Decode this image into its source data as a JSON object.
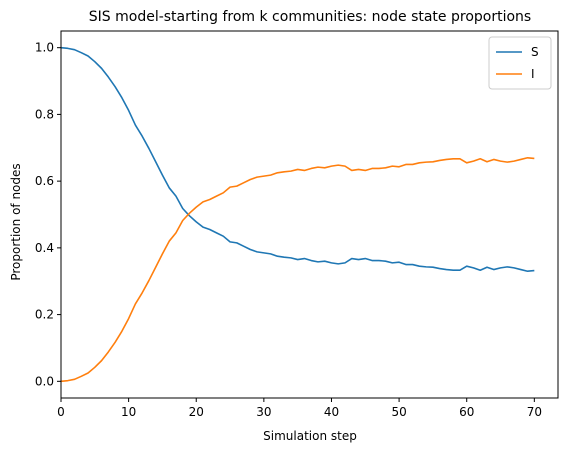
{
  "chart_data": {
    "type": "line",
    "title": "SIS model-starting from k communities: node state proportions",
    "xlabel": "Simulation step",
    "ylabel": "Proportion of nodes",
    "xlim": [
      0,
      73.5
    ],
    "ylim": [
      -0.05,
      1.05
    ],
    "xticks": [
      0,
      10,
      20,
      30,
      40,
      50,
      60,
      70
    ],
    "xtick_labels": [
      "0",
      "10",
      "20",
      "30",
      "40",
      "50",
      "60",
      "70"
    ],
    "yticks": [
      0.0,
      0.2,
      0.4,
      0.6,
      0.8,
      1.0
    ],
    "ytick_labels": [
      "0.0",
      "0.2",
      "0.4",
      "0.6",
      "0.8",
      "1.0"
    ],
    "grid": false,
    "legend_position": "top-right",
    "x": [
      0,
      1,
      2,
      3,
      4,
      5,
      6,
      7,
      8,
      9,
      10,
      11,
      12,
      13,
      14,
      15,
      16,
      17,
      18,
      19,
      20,
      21,
      22,
      23,
      24,
      25,
      26,
      27,
      28,
      29,
      30,
      31,
      32,
      33,
      34,
      35,
      36,
      37,
      38,
      39,
      40,
      41,
      42,
      43,
      44,
      45,
      46,
      47,
      48,
      49,
      50,
      51,
      52,
      53,
      54,
      55,
      56,
      57,
      58,
      59,
      60,
      61,
      62,
      63,
      64,
      65,
      66,
      67,
      68,
      69,
      70
    ],
    "series": [
      {
        "name": "S",
        "color": "#1f77b4",
        "values": [
          1.0,
          0.998,
          0.994,
          0.985,
          0.975,
          0.958,
          0.938,
          0.912,
          0.883,
          0.85,
          0.812,
          0.768,
          0.735,
          0.698,
          0.658,
          0.618,
          0.58,
          0.555,
          0.518,
          0.496,
          0.478,
          0.462,
          0.455,
          0.445,
          0.435,
          0.418,
          0.415,
          0.405,
          0.395,
          0.388,
          0.385,
          0.382,
          0.375,
          0.372,
          0.37,
          0.365,
          0.368,
          0.362,
          0.358,
          0.36,
          0.355,
          0.352,
          0.355,
          0.368,
          0.365,
          0.368,
          0.362,
          0.362,
          0.36,
          0.355,
          0.357,
          0.35,
          0.35,
          0.345,
          0.343,
          0.342,
          0.338,
          0.335,
          0.333,
          0.333,
          0.345,
          0.34,
          0.333,
          0.342,
          0.335,
          0.34,
          0.343,
          0.34,
          0.335,
          0.33,
          0.332
        ]
      },
      {
        "name": "I",
        "color": "#ff7f0e",
        "values": [
          0.0,
          0.002,
          0.006,
          0.015,
          0.025,
          0.042,
          0.062,
          0.088,
          0.117,
          0.15,
          0.188,
          0.232,
          0.265,
          0.302,
          0.342,
          0.382,
          0.42,
          0.445,
          0.482,
          0.504,
          0.522,
          0.538,
          0.545,
          0.555,
          0.565,
          0.582,
          0.585,
          0.595,
          0.605,
          0.612,
          0.615,
          0.618,
          0.625,
          0.628,
          0.63,
          0.635,
          0.632,
          0.638,
          0.642,
          0.64,
          0.645,
          0.648,
          0.645,
          0.632,
          0.635,
          0.632,
          0.638,
          0.638,
          0.64,
          0.645,
          0.643,
          0.65,
          0.65,
          0.655,
          0.657,
          0.658,
          0.662,
          0.665,
          0.667,
          0.667,
          0.655,
          0.66,
          0.667,
          0.658,
          0.665,
          0.66,
          0.657,
          0.66,
          0.665,
          0.67,
          0.668
        ]
      }
    ]
  }
}
